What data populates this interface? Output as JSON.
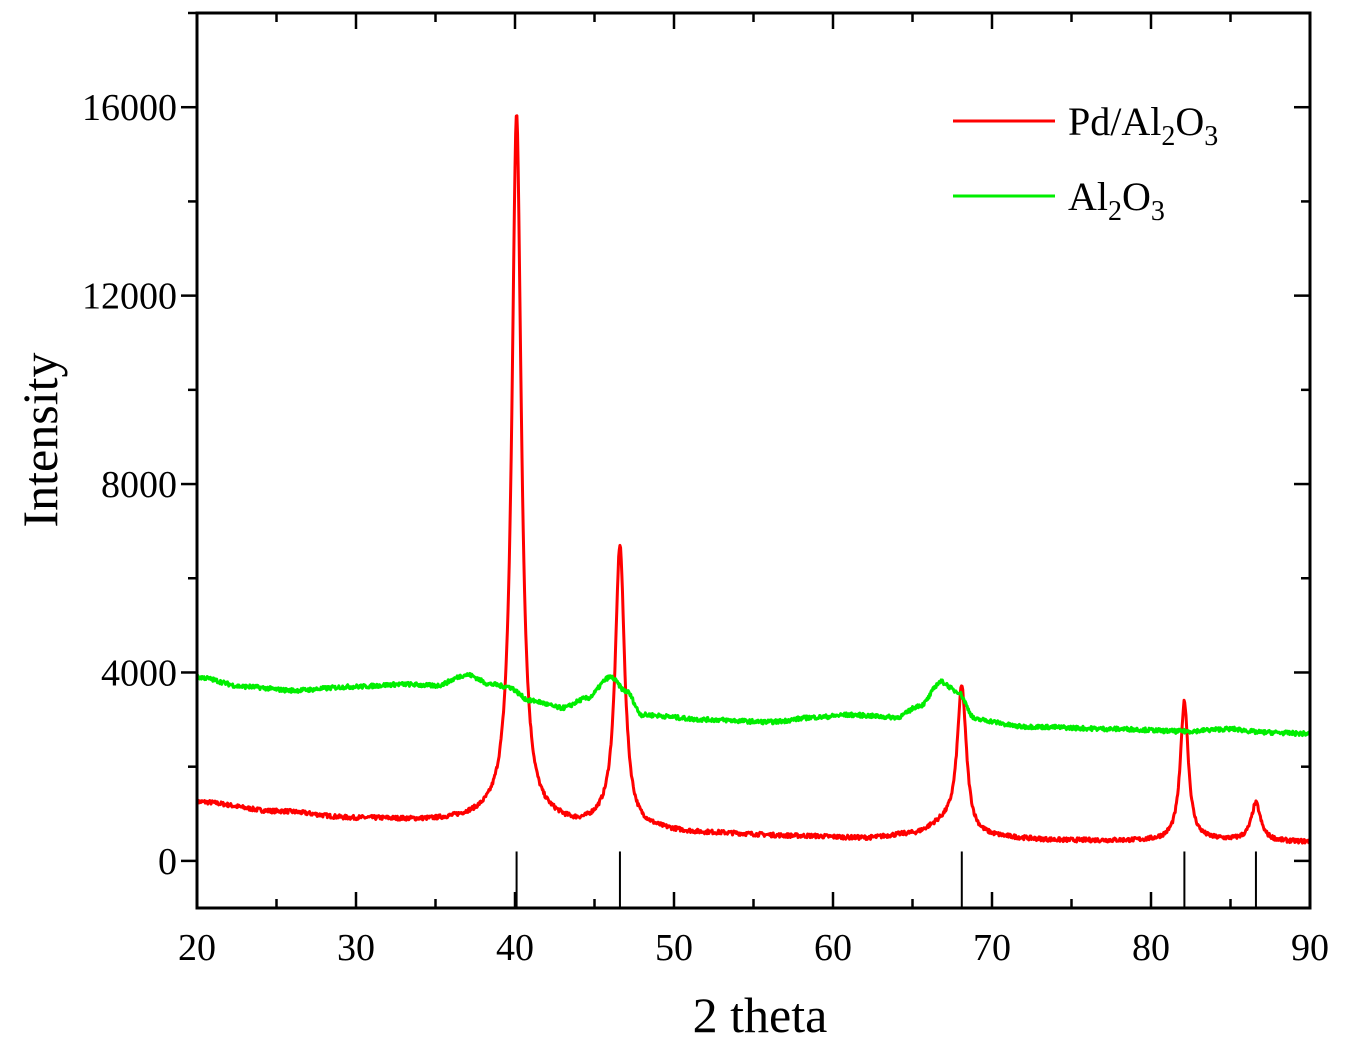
{
  "chart_data": {
    "type": "line",
    "title": "",
    "xlabel": "2 theta",
    "ylabel": "Intensity",
    "xlim": [
      20,
      90
    ],
    "ylim": [
      -1000,
      18000
    ],
    "x_ticks": [
      20,
      30,
      40,
      50,
      60,
      70,
      80,
      90
    ],
    "x_tick_labels": [
      "20",
      "30",
      "40",
      "50",
      "60",
      "70",
      "80",
      "90"
    ],
    "y_ticks": [
      0,
      4000,
      8000,
      12000,
      16000
    ],
    "y_tick_labels": [
      "0",
      "4000",
      "8000",
      "12000",
      "16000"
    ],
    "x_minor_step": 5,
    "y_minor_step": 2000,
    "grid": false,
    "legend_position": "top-right",
    "reference_lines": [
      40.1,
      46.6,
      68.1,
      82.1,
      86.6
    ],
    "series": [
      {
        "name": "Pd/Al2O3",
        "legend_main": "Pd/Al",
        "legend_parts": [
          {
            "text": "Pd/Al",
            "sub": false
          },
          {
            "text": "2",
            "sub": true
          },
          {
            "text": "O",
            "sub": false
          },
          {
            "text": "3",
            "sub": true
          }
        ],
        "color": "#ff0000",
        "baseline": [
          [
            20,
            1250
          ],
          [
            25,
            1050
          ],
          [
            30,
            900
          ],
          [
            35,
            850
          ],
          [
            38,
            880
          ],
          [
            42,
            800
          ],
          [
            44,
            720
          ],
          [
            46,
            800
          ],
          [
            48,
            650
          ],
          [
            52,
            580
          ],
          [
            58,
            520
          ],
          [
            62,
            480
          ],
          [
            65,
            560
          ],
          [
            67,
            750
          ],
          [
            69,
            500
          ],
          [
            75,
            430
          ],
          [
            80,
            420
          ],
          [
            84,
            430
          ],
          [
            90,
            400
          ]
        ],
        "peaks": [
          {
            "x": 40.1,
            "height": 15000,
            "width": 0.35
          },
          {
            "x": 46.6,
            "height": 5900,
            "width": 0.35
          },
          {
            "x": 68.1,
            "height": 3100,
            "width": 0.35
          },
          {
            "x": 82.1,
            "height": 2950,
            "width": 0.3
          },
          {
            "x": 86.6,
            "height": 800,
            "width": 0.35
          }
        ]
      },
      {
        "name": "Al2O3",
        "legend_main": "Al",
        "legend_parts": [
          {
            "text": "Al",
            "sub": false
          },
          {
            "text": "2",
            "sub": true
          },
          {
            "text": "O",
            "sub": false
          },
          {
            "text": "3",
            "sub": true
          }
        ],
        "color": "#00ee00",
        "baseline": [
          [
            20,
            3900
          ],
          [
            23,
            3700
          ],
          [
            26,
            3620
          ],
          [
            30,
            3700
          ],
          [
            33,
            3750
          ],
          [
            35,
            3720
          ],
          [
            37,
            3950
          ],
          [
            38.5,
            3750
          ],
          [
            39.5,
            3700
          ],
          [
            41,
            3400
          ],
          [
            43,
            3250
          ],
          [
            44.5,
            3450
          ],
          [
            46,
            3900
          ],
          [
            47,
            3600
          ],
          [
            48,
            3100
          ],
          [
            52,
            3000
          ],
          [
            56,
            2950
          ],
          [
            59,
            3050
          ],
          [
            61,
            3100
          ],
          [
            64,
            3050
          ],
          [
            65.5,
            3300
          ],
          [
            66.8,
            3800
          ],
          [
            67.8,
            3600
          ],
          [
            69,
            3000
          ],
          [
            72,
            2850
          ],
          [
            78,
            2800
          ],
          [
            82,
            2750
          ],
          [
            85,
            2800
          ],
          [
            87,
            2730
          ],
          [
            90,
            2700
          ]
        ],
        "peaks": []
      }
    ]
  }
}
